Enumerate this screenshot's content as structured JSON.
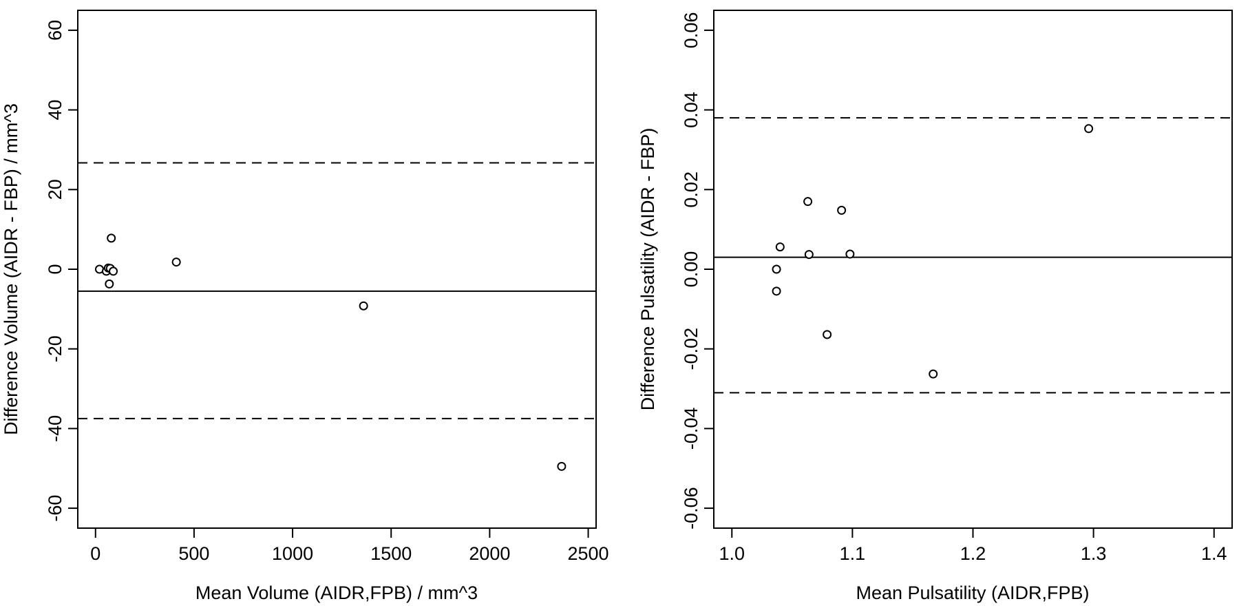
{
  "chart_data": [
    {
      "type": "scatter",
      "xlabel": "Mean Volume (AIDR,FPB) / mm^3",
      "ylabel": "Difference Volume (AIDR - FBP) / mm^3",
      "xlim": [
        -90,
        2540
      ],
      "ylim": [
        -65,
        65
      ],
      "xticks": [
        0,
        500,
        1000,
        1500,
        2000,
        2500
      ],
      "xtick_labels": [
        "0",
        "500",
        "1000",
        "1500",
        "2000",
        "2500"
      ],
      "yticks": [
        -60,
        -40,
        -20,
        0,
        20,
        40,
        60
      ],
      "ytick_labels": [
        "-60",
        "-40",
        "-20",
        "0",
        "20",
        "40",
        "60"
      ],
      "points": {
        "x": [
          20,
          55,
          65,
          70,
          75,
          80,
          90,
          410,
          1360,
          2365
        ],
        "y": [
          0.0,
          -0.5,
          0.3,
          -3.7,
          0.2,
          7.8,
          -0.5,
          1.8,
          -9.2,
          -49.5
        ]
      },
      "mean_line": -5.5,
      "limits_of_agreement": [
        -37.5,
        26.7
      ],
      "grid": false
    },
    {
      "type": "scatter",
      "xlabel": "Mean Pulsatility (AIDR,FPB)",
      "ylabel": "Difference Pulsatility (AIDR - FBP)",
      "xlim": [
        0.985,
        1.415
      ],
      "ylim": [
        -0.065,
        0.065
      ],
      "xticks": [
        1.0,
        1.1,
        1.2,
        1.3,
        1.4
      ],
      "xtick_labels": [
        "1.0",
        "1.1",
        "1.2",
        "1.3",
        "1.4"
      ],
      "yticks": [
        -0.06,
        -0.04,
        -0.02,
        0.0,
        0.02,
        0.04,
        0.06
      ],
      "ytick_labels": [
        "-0.06",
        "-0.04",
        "-0.02",
        "0.00",
        "0.02",
        "0.04",
        "0.06"
      ],
      "points": {
        "x": [
          1.037,
          1.037,
          1.04,
          1.063,
          1.064,
          1.079,
          1.091,
          1.098,
          1.167,
          1.296
        ],
        "y": [
          -0.0055,
          0.0,
          0.0056,
          0.017,
          0.0037,
          -0.0164,
          0.0148,
          0.0038,
          -0.0263,
          0.0353
        ]
      },
      "mean_line": 0.003,
      "limits_of_agreement": [
        -0.031,
        0.038
      ],
      "grid": false
    }
  ]
}
